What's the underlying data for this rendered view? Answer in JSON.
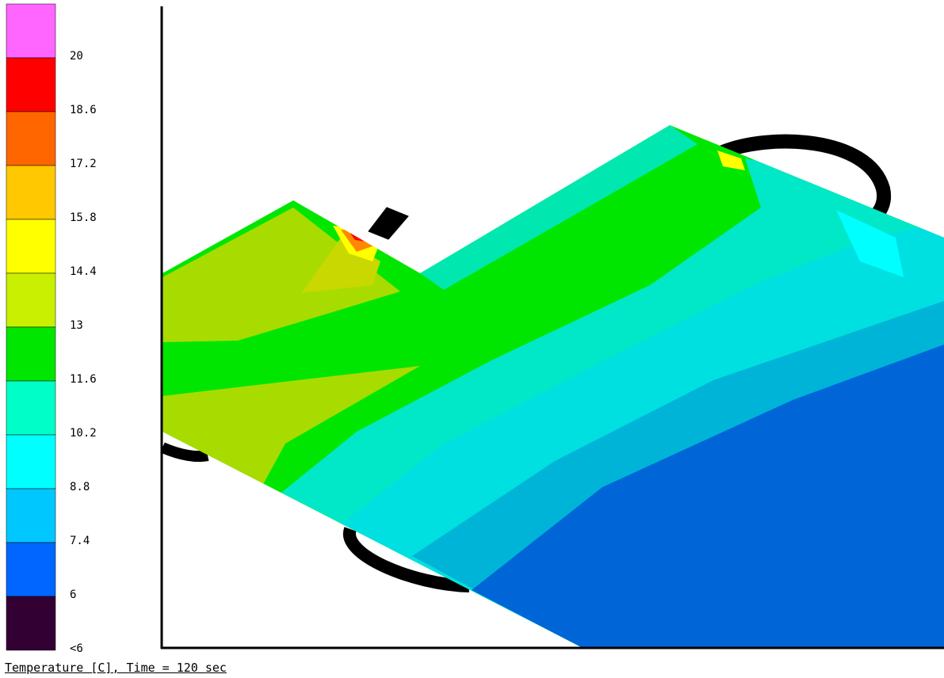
{
  "legend": {
    "levels": [
      {
        "label": "20",
        "color": "#ff66ff"
      },
      {
        "label": "18.6",
        "color": "#ff0000"
      },
      {
        "label": "17.2",
        "color": "#ff6600"
      },
      {
        "label": "15.8",
        "color": "#ffc800"
      },
      {
        "label": "14.4",
        "color": "#ffff00"
      },
      {
        "label": "13",
        "color": "#c8f000"
      },
      {
        "label": "11.6",
        "color": "#00e600"
      },
      {
        "label": "10.2",
        "color": "#00ffc8"
      },
      {
        "label": "8.8",
        "color": "#00ffff"
      },
      {
        "label": "7.4",
        "color": "#00c8ff"
      },
      {
        "label": "6",
        "color": "#0066ff"
      },
      {
        "label": "<6",
        "color": "#330033"
      }
    ]
  },
  "caption": "Temperature [C], Time = 120 sec"
}
